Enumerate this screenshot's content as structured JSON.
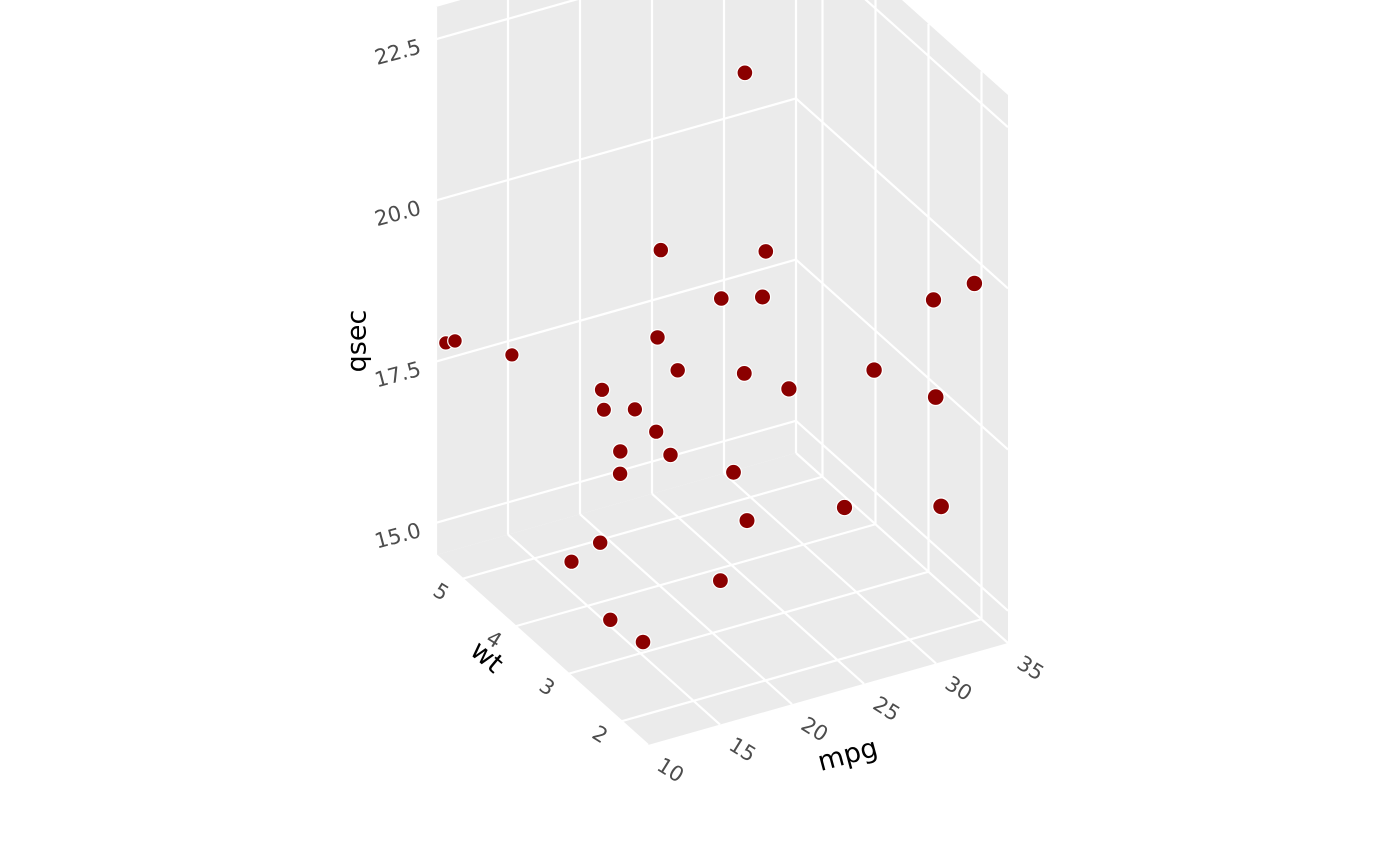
{
  "colors": {
    "pane": "#EBEBEB",
    "grid": "#FFFFFF",
    "point_fill": "#8B0000",
    "point_stroke": "#FFFFFF",
    "tick_text": "#4D4D4D",
    "title_text": "#000000"
  },
  "chart_data": {
    "type": "scatter",
    "title": "",
    "projection": "3d",
    "axes": {
      "x": {
        "label": "mpg",
        "range": [
          10,
          35
        ],
        "ticks": [
          10,
          15,
          20,
          25,
          30,
          35
        ],
        "tick_labels": [
          "10",
          "15",
          "20",
          "25",
          "30",
          "35"
        ]
      },
      "y": {
        "label": "wt",
        "range": [
          1.5,
          5.5
        ],
        "ticks": [
          2,
          3,
          4,
          5
        ],
        "tick_labels": [
          "2",
          "3",
          "4",
          "5"
        ]
      },
      "z": {
        "label": "qsec",
        "range": [
          14.5,
          23
        ],
        "ticks": [
          15,
          17.5,
          20,
          22.5
        ],
        "tick_labels": [
          "15.0",
          "17.5",
          "20.0",
          "22.5"
        ]
      }
    },
    "grid": true,
    "legend": "none",
    "points": [
      {
        "x": 21.0,
        "y": 2.62,
        "z": 16.46
      },
      {
        "x": 21.0,
        "y": 2.875,
        "z": 17.02
      },
      {
        "x": 22.8,
        "y": 2.32,
        "z": 18.61
      },
      {
        "x": 21.4,
        "y": 3.215,
        "z": 19.44
      },
      {
        "x": 18.7,
        "y": 3.44,
        "z": 17.02
      },
      {
        "x": 18.1,
        "y": 3.46,
        "z": 20.22
      },
      {
        "x": 14.3,
        "y": 3.57,
        "z": 15.84
      },
      {
        "x": 24.4,
        "y": 3.19,
        "z": 20.0
      },
      {
        "x": 22.8,
        "y": 3.15,
        "z": 22.9
      },
      {
        "x": 19.2,
        "y": 3.44,
        "z": 18.3
      },
      {
        "x": 17.8,
        "y": 3.44,
        "z": 18.9
      },
      {
        "x": 16.4,
        "y": 4.07,
        "z": 17.4
      },
      {
        "x": 17.3,
        "y": 3.73,
        "z": 17.6
      },
      {
        "x": 15.2,
        "y": 3.78,
        "z": 18.0
      },
      {
        "x": 10.4,
        "y": 5.25,
        "z": 17.98
      },
      {
        "x": 10.4,
        "y": 5.424,
        "z": 17.82
      },
      {
        "x": 14.7,
        "y": 5.345,
        "z": 17.42
      },
      {
        "x": 32.4,
        "y": 2.2,
        "z": 19.47
      },
      {
        "x": 30.4,
        "y": 1.615,
        "z": 18.52
      },
      {
        "x": 33.9,
        "y": 1.835,
        "z": 19.9
      },
      {
        "x": 21.5,
        "y": 2.465,
        "z": 20.01
      },
      {
        "x": 15.5,
        "y": 3.52,
        "z": 16.87
      },
      {
        "x": 15.2,
        "y": 3.435,
        "z": 17.3
      },
      {
        "x": 13.3,
        "y": 3.84,
        "z": 15.41
      },
      {
        "x": 19.2,
        "y": 3.845,
        "z": 17.05
      },
      {
        "x": 27.3,
        "y": 1.935,
        "z": 18.9
      },
      {
        "x": 26.0,
        "y": 2.14,
        "z": 16.7
      },
      {
        "x": 30.4,
        "y": 1.513,
        "z": 16.9
      },
      {
        "x": 15.8,
        "y": 3.17,
        "z": 14.5
      },
      {
        "x": 19.7,
        "y": 2.77,
        "z": 15.5
      },
      {
        "x": 15.0,
        "y": 3.57,
        "z": 14.6
      },
      {
        "x": 21.4,
        "y": 2.78,
        "z": 18.6
      }
    ]
  }
}
